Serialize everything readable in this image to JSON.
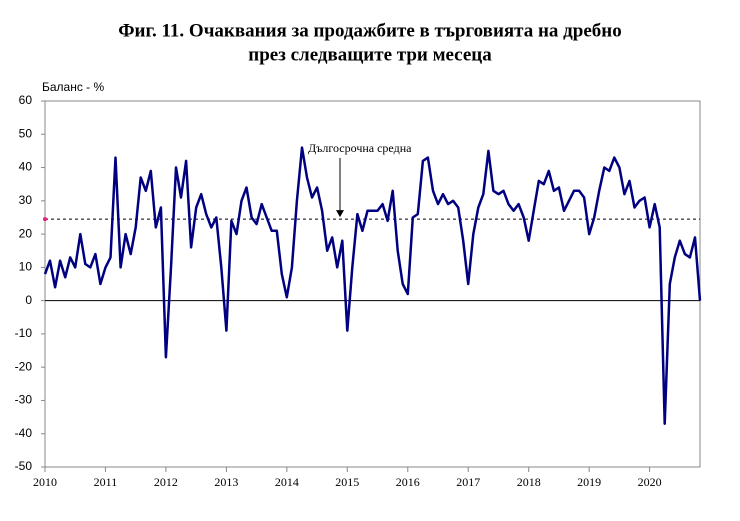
{
  "chart_data": {
    "type": "line",
    "title": "Фиг. 11. Очаквания за продажбите в търговията на дребно",
    "subtitle": "през следващите три месеца",
    "y_axis_label": "Баланс - %",
    "annotation": "Дългосрочна средна",
    "reference_line": 24.5,
    "categories": [
      "2010",
      null,
      null,
      null,
      null,
      null,
      null,
      null,
      null,
      null,
      null,
      null,
      "2011",
      null,
      null,
      null,
      null,
      null,
      null,
      null,
      null,
      null,
      null,
      null,
      "2012",
      null,
      null,
      null,
      null,
      null,
      null,
      null,
      null,
      null,
      null,
      null,
      "2013",
      null,
      null,
      null,
      null,
      null,
      null,
      null,
      null,
      null,
      null,
      null,
      "2014",
      null,
      null,
      null,
      null,
      null,
      null,
      null,
      null,
      null,
      null,
      null,
      "2015",
      null,
      null,
      null,
      null,
      null,
      null,
      null,
      null,
      null,
      null,
      null,
      "2016",
      null,
      null,
      null,
      null,
      null,
      null,
      null,
      null,
      null,
      null,
      null,
      "2017",
      null,
      null,
      null,
      null,
      null,
      null,
      null,
      null,
      null,
      null,
      null,
      "2018",
      null,
      null,
      null,
      null,
      null,
      null,
      null,
      null,
      null,
      null,
      null,
      "2019",
      null,
      null,
      null,
      null,
      null,
      null,
      null,
      null,
      null,
      null,
      null,
      "2020",
      null,
      null,
      null,
      null,
      null,
      null,
      null,
      null,
      null,
      null
    ],
    "series": [
      {
        "color": "#000080",
        "values": [
          8,
          12,
          4,
          12,
          7,
          13,
          10,
          20,
          11,
          10,
          14,
          5,
          10,
          13,
          43,
          10,
          20,
          14,
          22,
          37,
          33,
          39,
          22,
          28,
          -17,
          10,
          40,
          31,
          42,
          16,
          28,
          32,
          26,
          22,
          25,
          10,
          -9,
          24,
          20,
          30,
          34,
          25,
          23,
          29,
          25,
          21,
          21,
          8,
          1,
          10,
          30,
          46,
          37,
          31,
          34,
          27,
          15,
          19,
          10,
          18,
          -9,
          10,
          26,
          21,
          27,
          27,
          27,
          29,
          24,
          33,
          15,
          5,
          2,
          25,
          26,
          42,
          43,
          33,
          29,
          32,
          29,
          30,
          28,
          18,
          5,
          20,
          28,
          32,
          45,
          33,
          32,
          33,
          29,
          27,
          29,
          25,
          18,
          27,
          36,
          35,
          39,
          33,
          34,
          27,
          30,
          33,
          33,
          31,
          20,
          25,
          33,
          40,
          39,
          43,
          40,
          32,
          36,
          28,
          30,
          31,
          22,
          29,
          22,
          -37,
          5,
          13,
          18,
          14,
          13,
          19,
          0
        ]
      }
    ],
    "ylim": [
      -50,
      60
    ],
    "yticks": [
      -50,
      -40,
      -30,
      -20,
      -10,
      0,
      10,
      20,
      30,
      40,
      50,
      60
    ]
  }
}
